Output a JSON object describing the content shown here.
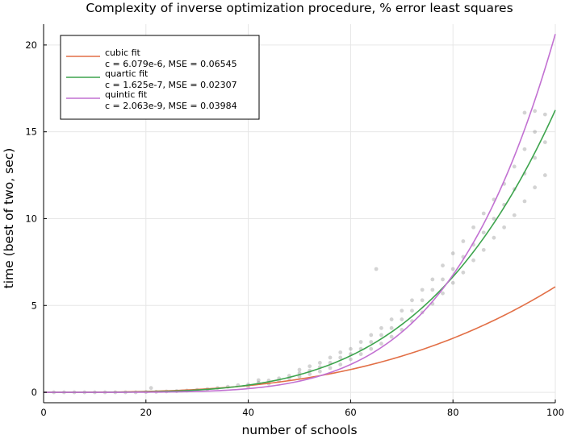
{
  "chart_data": {
    "type": "scatter",
    "title": "Complexity of inverse optimization procedure, % error least squares",
    "xlabel": "number of schools",
    "ylabel": "time (best of two, sec)",
    "xlim": [
      0,
      100
    ],
    "ylim": [
      -0.6,
      21.2
    ],
    "x_ticks": [
      0,
      20,
      40,
      60,
      80,
      100
    ],
    "y_ticks": [
      0,
      5,
      10,
      15,
      20
    ],
    "grid": true,
    "legend_position": "top-left",
    "series": [
      {
        "name": "cubic fit",
        "detail": "c = 6.079e-6, MSE = 0.06545",
        "power": 3,
        "c": 6.079e-06,
        "color": "#e26f46"
      },
      {
        "name": "quartic fit",
        "detail": "c = 1.625e-7, MSE = 0.02307",
        "power": 4,
        "c": 1.625e-07,
        "color": "#3da44d"
      },
      {
        "name": "quintic fit",
        "detail": "c = 2.063e-9, MSE = 0.03984",
        "power": 5,
        "c": 2.063e-09,
        "color": "#c271d2"
      }
    ],
    "scatter": {
      "color": "#808080",
      "points": [
        [
          2,
          0
        ],
        [
          4,
          0
        ],
        [
          6,
          0
        ],
        [
          8,
          0
        ],
        [
          10,
          0
        ],
        [
          12,
          0
        ],
        [
          14,
          0
        ],
        [
          16,
          0
        ],
        [
          18,
          0
        ],
        [
          20,
          0.02
        ],
        [
          21,
          0.25
        ],
        [
          22,
          0.03
        ],
        [
          24,
          0.05
        ],
        [
          26,
          0.07
        ],
        [
          28,
          0.1
        ],
        [
          30,
          0.14
        ],
        [
          32,
          0.19
        ],
        [
          34,
          0.25
        ],
        [
          36,
          0.32
        ],
        [
          38,
          0.41
        ],
        [
          40,
          0.45
        ],
        [
          40,
          0.3
        ],
        [
          42,
          0.55
        ],
        [
          42,
          0.7
        ],
        [
          44,
          0.68
        ],
        [
          44,
          0.5
        ],
        [
          46,
          0.8
        ],
        [
          46,
          0.65
        ],
        [
          48,
          0.95
        ],
        [
          48,
          0.8
        ],
        [
          50,
          1.1
        ],
        [
          50,
          1.3
        ],
        [
          50,
          0.9
        ],
        [
          52,
          1.25
        ],
        [
          52,
          1.5
        ],
        [
          52,
          1.05
        ],
        [
          54,
          1.45
        ],
        [
          54,
          1.7
        ],
        [
          54,
          1.2
        ],
        [
          56,
          1.7
        ],
        [
          56,
          2.0
        ],
        [
          56,
          1.4
        ],
        [
          58,
          2.0
        ],
        [
          58,
          2.3
        ],
        [
          58,
          1.6
        ],
        [
          60,
          2.2
        ],
        [
          60,
          2.5
        ],
        [
          60,
          1.9
        ],
        [
          62,
          2.5
        ],
        [
          62,
          2.9
        ],
        [
          62,
          2.2
        ],
        [
          64,
          2.9
        ],
        [
          64,
          3.3
        ],
        [
          64,
          2.5
        ],
        [
          65,
          7.1
        ],
        [
          66,
          3.3
        ],
        [
          66,
          3.7
        ],
        [
          66,
          2.8
        ],
        [
          68,
          3.7
        ],
        [
          68,
          4.2
        ],
        [
          68,
          3.2
        ],
        [
          70,
          4.2
        ],
        [
          70,
          4.7
        ],
        [
          70,
          3.6
        ],
        [
          72,
          4.7
        ],
        [
          72,
          5.3
        ],
        [
          72,
          4.1
        ],
        [
          74,
          5.3
        ],
        [
          74,
          5.9
        ],
        [
          74,
          4.6
        ],
        [
          76,
          5.9
        ],
        [
          76,
          6.5
        ],
        [
          76,
          5.1
        ],
        [
          78,
          6.5
        ],
        [
          78,
          7.3
        ],
        [
          78,
          5.7
        ],
        [
          80,
          7.1
        ],
        [
          80,
          8.0
        ],
        [
          80,
          6.3
        ],
        [
          82,
          7.8
        ],
        [
          82,
          8.7
        ],
        [
          82,
          6.9
        ],
        [
          84,
          8.5
        ],
        [
          84,
          9.5
        ],
        [
          84,
          7.6
        ],
        [
          86,
          9.2
        ],
        [
          86,
          10.3
        ],
        [
          86,
          8.2
        ],
        [
          88,
          10.0
        ],
        [
          88,
          11.1
        ],
        [
          88,
          8.9
        ],
        [
          90,
          10.8
        ],
        [
          90,
          12.0
        ],
        [
          90,
          9.5
        ],
        [
          92,
          11.7
        ],
        [
          92,
          13.0
        ],
        [
          92,
          10.2
        ],
        [
          94,
          12.6
        ],
        [
          94,
          14.0
        ],
        [
          94,
          11.0
        ],
        [
          96,
          13.5
        ],
        [
          96,
          15.0
        ],
        [
          96,
          11.8
        ],
        [
          98,
          14.4
        ],
        [
          98,
          16.0
        ],
        [
          98,
          12.5
        ],
        [
          94,
          16.1
        ],
        [
          96,
          16.2
        ]
      ]
    }
  }
}
